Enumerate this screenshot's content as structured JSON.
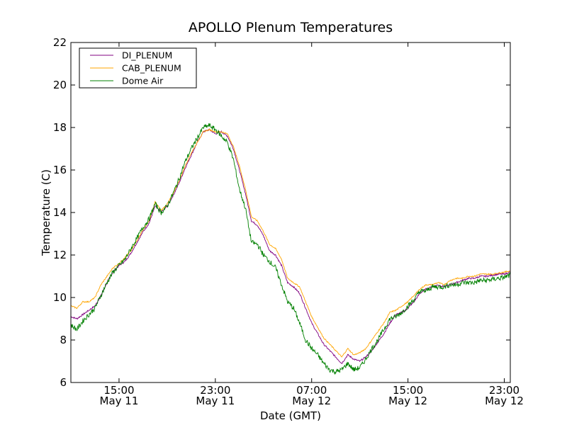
{
  "chart_data": {
    "type": "line",
    "title": "APOLLO Plenum Temperatures",
    "xlabel": "Date (GMT)",
    "ylabel": "Temperature (C)",
    "x_unit": "hours since May 11 00:00 GMT",
    "xlim": [
      11,
      47.5
    ],
    "ylim": [
      6,
      22
    ],
    "yticks": [
      6,
      8,
      10,
      12,
      14,
      16,
      18,
      20,
      22
    ],
    "xticks": [
      {
        "x": 15,
        "time": "15:00",
        "date": "May 11"
      },
      {
        "x": 23,
        "time": "23:00",
        "date": "May 11"
      },
      {
        "x": 31,
        "time": "07:00",
        "date": "May 12"
      },
      {
        "x": 39,
        "time": "15:00",
        "date": "May 12"
      },
      {
        "x": 47,
        "time": "23:00",
        "date": "May 12"
      }
    ],
    "legend_position": "top-left",
    "grid": false,
    "x": [
      11,
      11.5,
      12,
      12.5,
      13,
      13.5,
      14,
      14.5,
      15,
      15.5,
      16,
      16.5,
      17,
      17.5,
      18,
      18.5,
      19,
      19.5,
      20,
      20.5,
      21,
      21.5,
      22,
      22.5,
      23,
      23.5,
      24,
      24.5,
      25,
      25.5,
      26,
      26.5,
      27,
      27.5,
      28,
      28.5,
      29,
      29.5,
      30,
      30.5,
      31,
      31.5,
      32,
      32.5,
      33,
      33.5,
      34,
      34.5,
      35,
      35.5,
      36,
      36.5,
      37,
      37.5,
      38,
      38.5,
      39,
      39.5,
      40,
      40.5,
      41,
      41.5,
      42,
      42.5,
      43,
      43.5,
      44,
      44.5,
      45,
      45.5,
      46,
      46.5,
      47,
      47.5
    ],
    "series": [
      {
        "name": "DI_PLENUM",
        "color": "#800080",
        "values": [
          9.1,
          9.0,
          9.2,
          9.4,
          9.6,
          10.1,
          10.7,
          11.2,
          11.5,
          11.7,
          12.1,
          12.6,
          13.1,
          13.5,
          14.3,
          14.0,
          14.3,
          14.8,
          15.4,
          16.1,
          16.7,
          17.3,
          17.8,
          17.9,
          17.7,
          17.8,
          17.6,
          17.0,
          16.0,
          14.9,
          13.6,
          13.4,
          12.9,
          12.2,
          12.0,
          11.5,
          10.7,
          10.5,
          10.2,
          9.5,
          8.8,
          8.3,
          7.8,
          7.5,
          7.2,
          6.9,
          7.3,
          7.1,
          7.0,
          7.2,
          7.5,
          7.9,
          8.3,
          8.8,
          9.2,
          9.3,
          9.5,
          9.8,
          10.2,
          10.4,
          10.5,
          10.6,
          10.5,
          10.6,
          10.7,
          10.8,
          10.9,
          10.9,
          11.0,
          11.0,
          11.05,
          11.1,
          11.1,
          11.2
        ]
      },
      {
        "name": "CAB_PLENUM",
        "color": "#ffa500",
        "values": [
          9.6,
          9.5,
          9.8,
          9.8,
          10.0,
          10.6,
          11.0,
          11.4,
          11.6,
          11.9,
          12.2,
          12.7,
          13.2,
          13.6,
          14.5,
          14.1,
          14.4,
          14.9,
          15.5,
          16.2,
          16.8,
          17.3,
          17.8,
          17.9,
          17.8,
          17.8,
          17.7,
          17.1,
          16.2,
          15.1,
          13.8,
          13.6,
          13.1,
          12.5,
          12.3,
          11.8,
          10.9,
          10.7,
          10.5,
          9.8,
          9.1,
          8.6,
          8.1,
          7.8,
          7.5,
          7.2,
          7.6,
          7.3,
          7.4,
          7.6,
          8.0,
          8.4,
          8.8,
          9.3,
          9.4,
          9.6,
          9.8,
          10.1,
          10.4,
          10.6,
          10.6,
          10.7,
          10.6,
          10.8,
          10.9,
          10.9,
          11.0,
          11.0,
          11.1,
          11.1,
          11.1,
          11.15,
          11.2,
          11.25
        ]
      },
      {
        "name": "Dome Air",
        "color": "#008000",
        "values": [
          8.7,
          8.5,
          8.9,
          9.2,
          9.5,
          10.1,
          10.7,
          11.2,
          11.5,
          11.8,
          12.3,
          12.8,
          13.3,
          13.7,
          14.4,
          14.0,
          14.3,
          14.9,
          15.6,
          16.4,
          17.0,
          17.5,
          18.0,
          18.1,
          17.9,
          17.6,
          17.3,
          16.5,
          15.1,
          14.2,
          12.6,
          12.5,
          12.0,
          11.7,
          11.4,
          10.6,
          9.8,
          9.5,
          8.8,
          8.0,
          7.6,
          7.3,
          6.9,
          6.6,
          6.5,
          6.6,
          6.9,
          6.6,
          6.7,
          7.1,
          7.6,
          8.0,
          8.5,
          9.0,
          9.1,
          9.3,
          9.6,
          9.9,
          10.3,
          10.3,
          10.5,
          10.5,
          10.5,
          10.6,
          10.6,
          10.7,
          10.7,
          10.7,
          10.8,
          10.8,
          10.85,
          10.9,
          10.95,
          11.05
        ]
      }
    ]
  }
}
